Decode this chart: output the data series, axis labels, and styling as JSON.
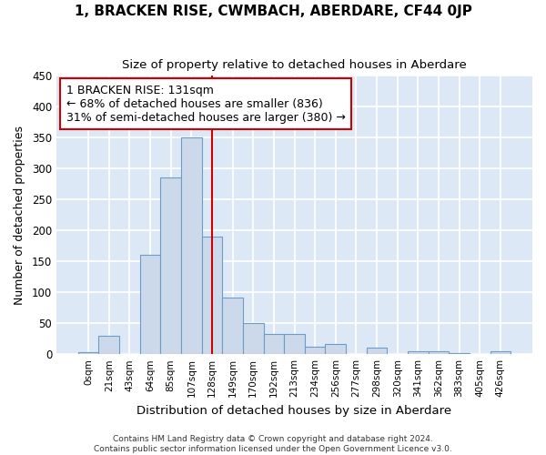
{
  "title": "1, BRACKEN RISE, CWMBACH, ABERDARE, CF44 0JP",
  "subtitle": "Size of property relative to detached houses in Aberdare",
  "xlabel": "Distribution of detached houses by size in Aberdare",
  "ylabel": "Number of detached properties",
  "bin_labels": [
    "0sqm",
    "21sqm",
    "43sqm",
    "64sqm",
    "85sqm",
    "107sqm",
    "128sqm",
    "149sqm",
    "170sqm",
    "192sqm",
    "213sqm",
    "234sqm",
    "256sqm",
    "277sqm",
    "298sqm",
    "320sqm",
    "341sqm",
    "362sqm",
    "383sqm",
    "405sqm",
    "426sqm"
  ],
  "bar_values": [
    3,
    30,
    0,
    160,
    285,
    350,
    190,
    92,
    50,
    32,
    32,
    12,
    17,
    0,
    10,
    0,
    5,
    5,
    2,
    0,
    5
  ],
  "bar_color": "#ccd9ea",
  "bar_edge_color": "#6b9dc8",
  "vline_x": 6,
  "vline_color": "#cc0000",
  "annotation_text": "1 BRACKEN RISE: 131sqm\n← 68% of detached houses are smaller (836)\n31% of semi-detached houses are larger (380) →",
  "annotation_box_color": "#ffffff",
  "annotation_box_edge": "#cc0000",
  "ylim": [
    0,
    450
  ],
  "yticks": [
    0,
    50,
    100,
    150,
    200,
    250,
    300,
    350,
    400,
    450
  ],
  "background_color": "#dce8f5",
  "grid_color": "#ffffff",
  "footer_line1": "Contains HM Land Registry data © Crown copyright and database right 2024.",
  "footer_line2": "Contains public sector information licensed under the Open Government Licence v3.0."
}
